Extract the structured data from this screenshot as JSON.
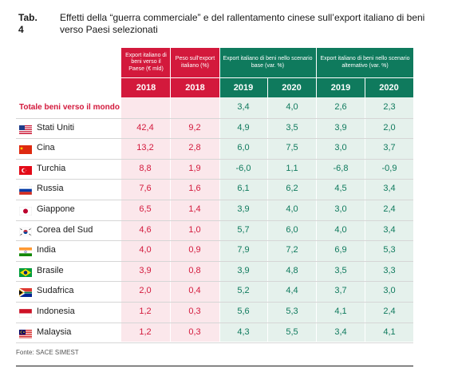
{
  "title": {
    "number": "Tab. 4",
    "text": "Effetti della “guerra commerciale” e del rallentamento cinese sull’export italiano di beni verso Paesi selezionati"
  },
  "headers": {
    "export": "Export italiano di beni verso il Paese (€ mld)",
    "peso": "Peso sull’export italiano (%)",
    "base": "Export italiano di beni nello scenario base (var. %)",
    "alt": "Export italiano di beni nello scenario alternativo (var. %)"
  },
  "years": [
    "2018",
    "2018",
    "2019",
    "2020",
    "2019",
    "2020"
  ],
  "total": {
    "label": "Totale beni verso il mondo",
    "values": [
      "",
      "",
      "3,4",
      "4,0",
      "2,6",
      "2,3"
    ]
  },
  "rows": [
    {
      "name": "Stati Uniti",
      "flag": "usa-flag-icon",
      "values": [
        "42,4",
        "9,2",
        "4,9",
        "3,5",
        "3,9",
        "2,0"
      ]
    },
    {
      "name": "Cina",
      "flag": "china-flag-icon",
      "values": [
        "13,2",
        "2,8",
        "6,0",
        "7,5",
        "3,0",
        "3,7"
      ]
    },
    {
      "name": "Turchia",
      "flag": "turkey-flag-icon",
      "values": [
        "8,8",
        "1,9",
        "-6,0",
        "1,1",
        "-6,8",
        "-0,9"
      ]
    },
    {
      "name": "Russia",
      "flag": "russia-flag-icon",
      "values": [
        "7,6",
        "1,6",
        "6,1",
        "6,2",
        "4,5",
        "3,4"
      ]
    },
    {
      "name": "Giappone",
      "flag": "japan-flag-icon",
      "values": [
        "6,5",
        "1,4",
        "3,9",
        "4,0",
        "3,0",
        "2,4"
      ]
    },
    {
      "name": "Corea del Sud",
      "flag": "south-korea-flag-icon",
      "values": [
        "4,6",
        "1,0",
        "5,7",
        "6,0",
        "4,0",
        "3,4"
      ]
    },
    {
      "name": "India",
      "flag": "india-flag-icon",
      "values": [
        "4,0",
        "0,9",
        "7,9",
        "7,2",
        "6,9",
        "5,3"
      ]
    },
    {
      "name": "Brasile",
      "flag": "brazil-flag-icon",
      "values": [
        "3,9",
        "0,8",
        "3,9",
        "4,8",
        "3,5",
        "3,3"
      ]
    },
    {
      "name": "Sudafrica",
      "flag": "south-africa-flag-icon",
      "values": [
        "2,0",
        "0,4",
        "5,2",
        "4,4",
        "3,7",
        "3,0"
      ]
    },
    {
      "name": "Indonesia",
      "flag": "indonesia-flag-icon",
      "values": [
        "1,2",
        "0,3",
        "5,6",
        "5,3",
        "4,1",
        "2,4"
      ]
    },
    {
      "name": "Malaysia",
      "flag": "malaysia-flag-icon",
      "values": [
        "1,2",
        "0,3",
        "4,3",
        "5,5",
        "3,4",
        "4,1"
      ]
    }
  ],
  "source": "Fonte: SACE SIMEST",
  "colors": {
    "red": "#d3193c",
    "green": "#0f7a5d",
    "pink_bg": "#fbe7eb",
    "mint_bg": "#e5f1ec"
  }
}
